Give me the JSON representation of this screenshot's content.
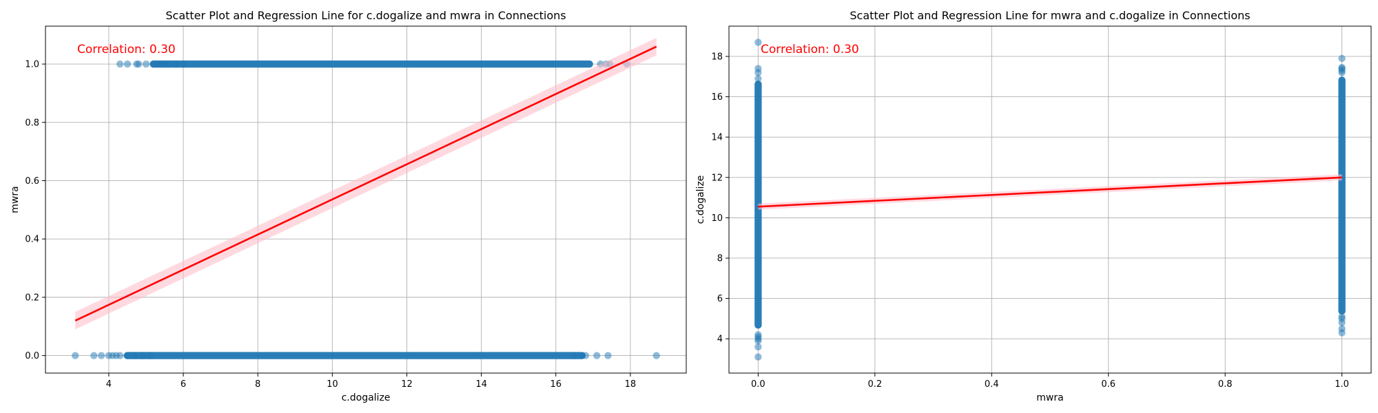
{
  "chart_data": [
    {
      "type": "scatter",
      "title": "Scatter Plot and Regression Line for c.dogalize and mwra in Connections",
      "xlabel": "c.dogalize",
      "ylabel": "mwra",
      "xlim": [
        2.3,
        19.5
      ],
      "ylim": [
        -0.06,
        1.13
      ],
      "xticks": [
        4,
        6,
        8,
        10,
        12,
        14,
        16,
        18
      ],
      "yticks": [
        0.0,
        0.2,
        0.4,
        0.6,
        0.8,
        1.0
      ],
      "xtick_labels": [
        "4",
        "6",
        "8",
        "10",
        "12",
        "14",
        "16",
        "18"
      ],
      "ytick_labels": [
        "0.0",
        "0.2",
        "0.4",
        "0.6",
        "0.8",
        "1.0"
      ],
      "grid": true,
      "annotation": "Correlation: 0.30",
      "point_color": "#1f77b4",
      "line_color": "#ff0000",
      "band_color": "#ffc0cb",
      "regression": {
        "x": [
          3.1,
          18.7
        ],
        "y": [
          0.12,
          1.06
        ]
      },
      "dense_ranges": [
        {
          "y": 1.0,
          "x": [
            5.1,
            17.0
          ]
        },
        {
          "y": 0.0,
          "x": [
            4.4,
            16.8
          ]
        }
      ],
      "series": [
        {
          "x": [
            4.3,
            4.5,
            4.75,
            4.8,
            5.0,
            5.2,
            5.3,
            5.4,
            5.5,
            5.6,
            5.8,
            6.0,
            17.2,
            17.35,
            17.45,
            17.9
          ],
          "y": [
            1,
            1,
            1,
            1,
            1,
            1,
            1,
            1,
            1,
            1,
            1,
            1,
            1,
            1,
            1,
            1
          ]
        },
        {
          "x": [
            3.1,
            3.6,
            3.8,
            4.0,
            4.1,
            4.2,
            4.3,
            4.5,
            4.7,
            4.9,
            5.1,
            16.5,
            16.7,
            16.8,
            17.1,
            17.4,
            18.7
          ],
          "y": [
            0,
            0,
            0,
            0,
            0,
            0,
            0,
            0,
            0,
            0,
            0,
            0,
            0,
            0,
            0,
            0,
            0
          ]
        }
      ]
    },
    {
      "type": "scatter",
      "title": "Scatter Plot and Regression Line for mwra and c.dogalize in Connections",
      "xlabel": "mwra",
      "ylabel": "c.dogalize",
      "xlim": [
        -0.05,
        1.05
      ],
      "ylim": [
        2.3,
        19.5
      ],
      "xticks": [
        0.0,
        0.2,
        0.4,
        0.6,
        0.8,
        1.0
      ],
      "yticks": [
        4,
        6,
        8,
        10,
        12,
        14,
        16,
        18
      ],
      "xtick_labels": [
        "0.0",
        "0.2",
        "0.4",
        "0.6",
        "0.8",
        "1.0"
      ],
      "ytick_labels": [
        "4",
        "6",
        "8",
        "10",
        "12",
        "14",
        "16",
        "18"
      ],
      "grid": true,
      "annotation": "Correlation: 0.30",
      "point_color": "#1f77b4",
      "line_color": "#ff0000",
      "band_color": "#ffc0cb",
      "regression": {
        "x": [
          0.0,
          1.0
        ],
        "y": [
          10.55,
          12.0
        ]
      },
      "dense_ranges": [
        {
          "x": 0.0,
          "y": [
            4.5,
            16.8
          ]
        },
        {
          "x": 1.0,
          "y": [
            5.2,
            17.0
          ]
        }
      ],
      "series": [
        {
          "x": [
            0,
            0,
            0,
            0,
            0,
            0,
            0,
            0,
            0,
            0
          ],
          "y": [
            3.1,
            3.6,
            3.9,
            4.0,
            4.1,
            4.2,
            16.9,
            17.2,
            17.4,
            18.7
          ]
        },
        {
          "x": [
            1,
            1,
            1,
            1,
            1,
            1,
            1,
            1,
            1,
            1
          ],
          "y": [
            4.3,
            4.5,
            4.8,
            5.0,
            5.1,
            17.2,
            17.3,
            17.4,
            17.45,
            17.9
          ]
        }
      ]
    }
  ]
}
